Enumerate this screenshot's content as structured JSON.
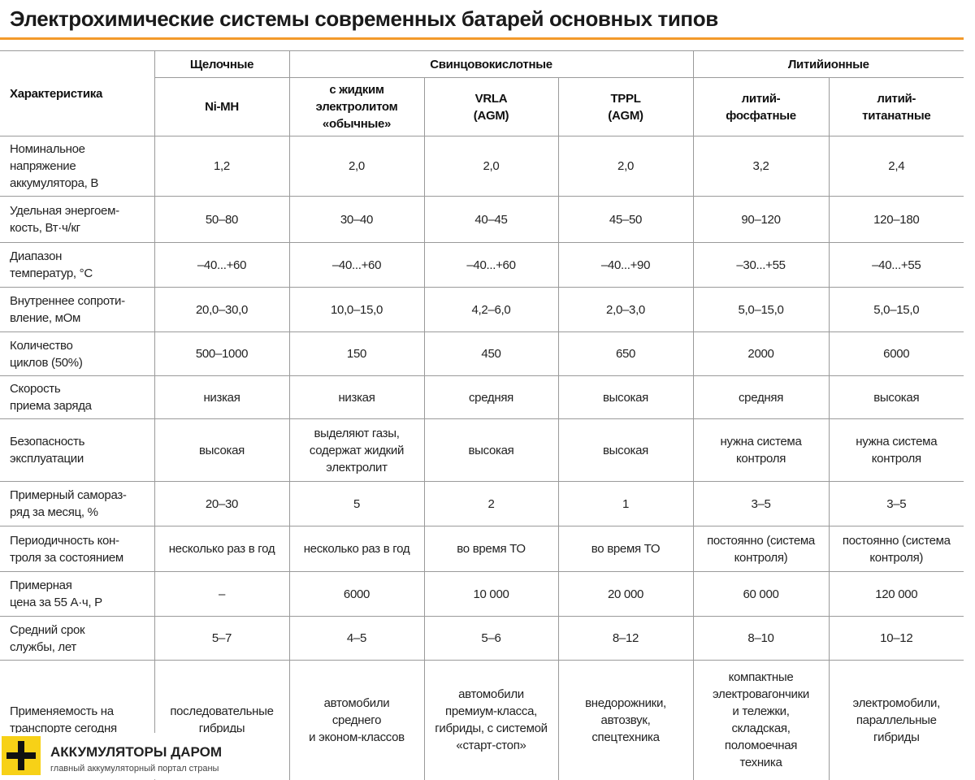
{
  "title": "Электрохимические системы современных батарей основных типов",
  "table": {
    "corner": "Характеристика",
    "groups": [
      {
        "label": "Щелочные",
        "columns": [
          "Ni-MH"
        ]
      },
      {
        "label": "Свинцовокислотные",
        "columns": [
          "с жидким\nэлектролитом\n«обычные»",
          "VRLA\n(AGM)",
          "TPPL\n(AGM)"
        ]
      },
      {
        "label": "Литийионные",
        "columns": [
          "литий-\nфосфатные",
          "литий-\nтитанатные"
        ]
      }
    ],
    "rows": [
      [
        "Номинальное\nнапряжение\nаккумулятора, В",
        "1,2",
        "2,0",
        "2,0",
        "2,0",
        "3,2",
        "2,4"
      ],
      [
        "Удельная энергоем-\nкость, Вт·ч/кг",
        "50–80",
        "30–40",
        "40–45",
        "45–50",
        "90–120",
        "120–180"
      ],
      [
        "Диапазон\nтемператур, °С",
        "–40...+60",
        "–40...+60",
        "–40...+60",
        "–40...+90",
        "–30...+55",
        "–40...+55"
      ],
      [
        "Внутреннее сопроти-\nвление, мОм",
        "20,0–30,0",
        "10,0–15,0",
        "4,2–6,0",
        "2,0–3,0",
        "5,0–15,0",
        "5,0–15,0"
      ],
      [
        "Количество\nциклов (50%)",
        "500–1000",
        "150",
        "450",
        "650",
        "2000",
        "6000"
      ],
      [
        "Скорость\nприема заряда",
        "низкая",
        "низкая",
        "средняя",
        "высокая",
        "средняя",
        "высокая"
      ],
      [
        "Безопасность\nэксплуатации",
        "высокая",
        "выделяют газы,\nсодержат жидкий\nэлектролит",
        "высокая",
        "высокая",
        "нужна система\nконтроля",
        "нужна система\nконтроля"
      ],
      [
        "Примерный самораз-\nряд за месяц, %",
        "20–30",
        "5",
        "2",
        "1",
        "3–5",
        "3–5"
      ],
      [
        "Периодичность кон-\nтроля за состоянием",
        "несколько раз в год",
        "несколько раз в год",
        "во время ТО",
        "во время ТО",
        "постоянно (система\nконтроля)",
        "постоянно (система\nконтроля)"
      ],
      [
        "Примерная\nцена за 55 А·ч, Р",
        "–",
        "6000",
        "10 000",
        "20 000",
        "60 000",
        "120 000"
      ],
      [
        "Средний срок\nслужбы, лет",
        "5–7",
        "4–5",
        "5–6",
        "8–12",
        "8–10",
        "10–12"
      ],
      [
        "Применяемость на\nтранспорте сегодня",
        "последовательные\nгибриды",
        "автомобили\nсреднего\nи эконом-классов",
        "автомобили\nпремиум-класса,\nгибриды, с системой\n«старт-стоп»",
        "внедорожники,\nавтозвук,\nспецтехника",
        "компактные\nэлектровагончики\nи тележки,\nскладская,\nполомоечная\nтехника",
        "электромобили,\nпараллельные\nгибриды"
      ]
    ]
  },
  "logo": {
    "name": "АККУМУЛЯТОРЫ ДАРОМ",
    "tagline": "главный аккумуляторный портал страны"
  }
}
